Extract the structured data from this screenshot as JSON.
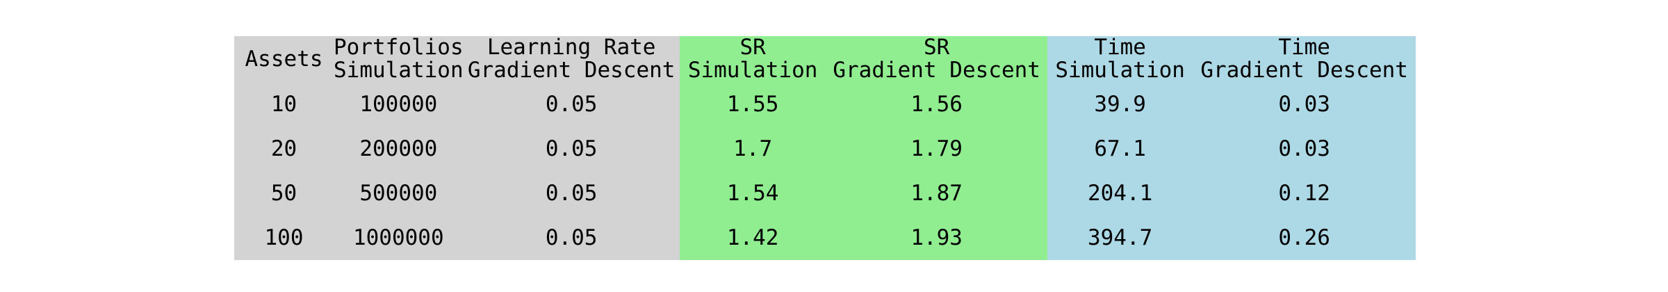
{
  "table": {
    "columns": [
      {
        "lines": [
          "Assets"
        ],
        "group": "gray"
      },
      {
        "lines": [
          "Portfolios",
          "Simulation"
        ],
        "group": "gray"
      },
      {
        "lines": [
          "Learning Rate",
          "Gradient Descent"
        ],
        "group": "gray"
      },
      {
        "lines": [
          "SR",
          "Simulation"
        ],
        "group": "green"
      },
      {
        "lines": [
          "SR",
          "Gradient Descent"
        ],
        "group": "green"
      },
      {
        "lines": [
          "Time",
          "Simulation"
        ],
        "group": "blue"
      },
      {
        "lines": [
          "Time",
          "Gradient Descent"
        ],
        "group": "blue"
      }
    ],
    "rows": [
      [
        "10",
        "100000",
        "0.05",
        "1.55",
        "1.56",
        "39.9",
        "0.03"
      ],
      [
        "20",
        "200000",
        "0.05",
        "1.7",
        "1.79",
        "67.1",
        "0.03"
      ],
      [
        "50",
        "500000",
        "0.05",
        "1.54",
        "1.87",
        "204.1",
        "0.12"
      ],
      [
        "100",
        "1000000",
        "0.05",
        "1.42",
        "1.93",
        "394.7",
        "0.26"
      ]
    ],
    "group_colors": {
      "gray": "#d3d3d3",
      "green": "#90ee90",
      "blue": "#add8e6"
    }
  }
}
